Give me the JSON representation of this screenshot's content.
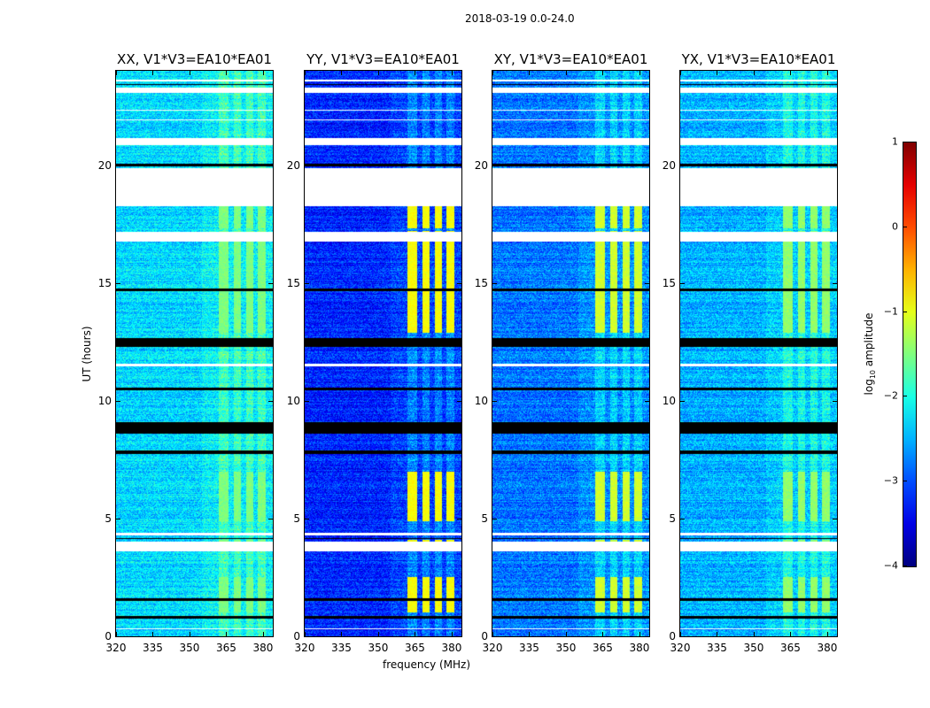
{
  "chart_data": {
    "type": "heatmap",
    "title": "2018-03-19 0.0-24.0",
    "xlabel": "frequency (MHz)",
    "ylabel": "UT (hours)",
    "xlim": [
      320,
      384
    ],
    "ylim": [
      0,
      24
    ],
    "xticks": [
      320,
      335,
      350,
      365,
      380
    ],
    "yticks": [
      0,
      5,
      10,
      15,
      20
    ],
    "colorbar": {
      "label_main": "log",
      "label_sub": "10",
      "label_rest": " amplitude",
      "range": [
        -4,
        1
      ],
      "ticks": [
        1,
        0,
        -1,
        -2,
        -3,
        -4
      ],
      "tick_labels": [
        "1",
        "0",
        "−1",
        "−2",
        "−3",
        "−4"
      ],
      "colormap": "jet"
    },
    "panels": [
      {
        "title": "XX, V1*V3=EA10*EA01",
        "base_level": -2.3,
        "rfi_peak": -1.5
      },
      {
        "title": "YY, V1*V3=EA10*EA01",
        "base_level": -3.2,
        "rfi_peak": -0.9
      },
      {
        "title": "XY, V1*V3=EA10*EA01",
        "base_level": -2.8,
        "rfi_peak": -1.1
      },
      {
        "title": "YX, V1*V3=EA10*EA01",
        "base_level": -2.5,
        "rfi_peak": -1.4
      }
    ],
    "rfi_bands_mhz": [
      [
        362,
        366
      ],
      [
        368,
        371
      ],
      [
        373,
        376
      ],
      [
        378,
        381
      ]
    ],
    "rfi_strong_hours": [
      [
        12.9,
        17.2
      ],
      [
        4.9,
        7.0
      ],
      [
        3.85,
        4.1
      ],
      [
        1.0,
        2.5
      ],
      [
        17.3,
        18.3
      ]
    ],
    "flagged_hours": [
      [
        18.25,
        19.85
      ],
      [
        20.85,
        21.15
      ],
      [
        23.05,
        23.3
      ],
      [
        23.55,
        23.62
      ],
      [
        16.75,
        17.15
      ],
      [
        3.6,
        4.0
      ],
      [
        0.3,
        0.35
      ],
      [
        11.45,
        11.55
      ],
      [
        22.3,
        22.36
      ],
      [
        21.9,
        21.95
      ],
      [
        4.3,
        4.4
      ]
    ],
    "dark_rows_hours": [
      [
        19.95,
        20.05
      ],
      [
        14.65,
        14.75
      ],
      [
        12.3,
        12.65
      ],
      [
        10.45,
        10.55
      ],
      [
        8.6,
        9.1
      ],
      [
        7.75,
        7.9
      ],
      [
        4.12,
        4.18
      ],
      [
        1.5,
        1.6
      ],
      [
        0.75,
        0.85
      ],
      [
        23.4,
        23.45
      ]
    ]
  }
}
